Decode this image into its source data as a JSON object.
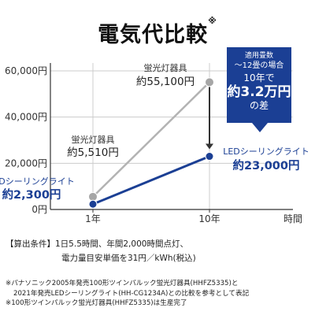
{
  "title": "電気代比較",
  "title_mark": "※",
  "chart_data": {
    "type": "line",
    "x_categories": [
      "1年",
      "10年"
    ],
    "xlabel": "時間",
    "ylabel": "",
    "ylim": [
      0,
      60000
    ],
    "y_ticks": [
      0,
      20000,
      40000,
      60000
    ],
    "y_tick_labels": [
      "0円",
      "20,000円",
      "40,000円",
      "60,000円"
    ],
    "grid": true,
    "series": [
      {
        "name": "蛍光灯器具",
        "color": "#b3b3b3",
        "points": [
          {
            "x": "1年",
            "y": 5510,
            "label_small": "蛍光灯器具",
            "label_large": "約5,510円"
          },
          {
            "x": "10年",
            "y": 55100,
            "label_small": "蛍光灯器具",
            "label_large": "約55,100円"
          }
        ]
      },
      {
        "name": "LEDシーリングライト",
        "color": "#1b3f94",
        "points": [
          {
            "x": "1年",
            "y": 2300,
            "label_small": "LEDシーリングライト",
            "label_large": "約2,300円"
          },
          {
            "x": "10年",
            "y": 23000,
            "label_small": "LEDシーリングライト",
            "label_large": "約23,000円"
          }
        ]
      }
    ]
  },
  "callout": {
    "line1": "適用畳数",
    "line2": "～12畳の場合",
    "line3": "10年で",
    "line4": "約3.2万円",
    "line5": "の差"
  },
  "conditions": {
    "line1": "【算出条件】1日5.5時間、年間2,000時間点灯、",
    "line2": "電力量目安単価を31円／kWh(税込)"
  },
  "notes": {
    "line1": "※パナソニック2005年発売100形ツインパルック蛍光灯器具(HHFZ5335)と",
    "line2": "2021年発売LEDシーリングライト(HH-CG1234A)との比較を参考として表記",
    "line3": "※100形ツインパルック蛍光灯器具(HHFZ5335)は生産完了"
  },
  "colors": {
    "accent": "#1b3f94",
    "gray_line": "#b3b3b3",
    "gray_marker": "#a6a6a6",
    "grid": "#cccccc"
  }
}
